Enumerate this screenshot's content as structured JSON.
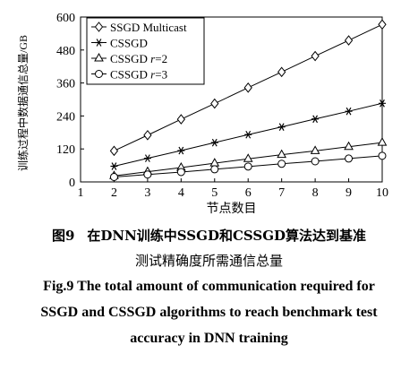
{
  "chart_data": {
    "type": "line",
    "xlabel": "节点数目",
    "ylabel": "训练过程中数据通信总量/GB",
    "xlim": [
      1,
      10
    ],
    "ylim": [
      0,
      600
    ],
    "xticks": [
      1,
      2,
      3,
      4,
      5,
      6,
      7,
      8,
      9,
      10
    ],
    "yticks": [
      0,
      120,
      240,
      360,
      480,
      600
    ],
    "grid": false,
    "legend_position": "top-left",
    "x": [
      2,
      3,
      4,
      5,
      6,
      7,
      8,
      9,
      10
    ],
    "series": [
      {
        "name": "SSGD Multicast",
        "marker": "diamond",
        "values": [
          113,
          170,
          228,
          285,
          343,
          400,
          458,
          515,
          573
        ]
      },
      {
        "name": "CSSGD",
        "marker": "asterisk",
        "values": [
          57,
          86,
          114,
          143,
          172,
          200,
          229,
          257,
          286
        ]
      },
      {
        "name": "CSSGD r=2",
        "marker": "triangle",
        "values": [
          22,
          37,
          52,
          68,
          84,
          99,
          113,
          128,
          143
        ]
      },
      {
        "name": "CSSGD r=3",
        "marker": "circle",
        "values": [
          18,
          27,
          36,
          46,
          56,
          66,
          75,
          85,
          95
        ]
      }
    ],
    "legend": [
      {
        "base": "SSGD Multicast",
        "italic": "",
        "tail": ""
      },
      {
        "base": "CSSGD",
        "italic": "",
        "tail": ""
      },
      {
        "base": "CSSGD ",
        "italic": "r",
        "tail": "=2"
      },
      {
        "base": "CSSGD ",
        "italic": "r",
        "tail": "=3"
      }
    ]
  },
  "caption": {
    "cn_number": "图9",
    "cn_line1": "在DNN训练中SSGD和CSSGD算法达到基准",
    "cn_line2": "测试精确度所需通信总量",
    "en_line1": "Fig.9   The total amount of communication required for",
    "en_line2": "SSGD and CSSGD algorithms to reach benchmark test",
    "en_line3": "accuracy in DNN training"
  }
}
